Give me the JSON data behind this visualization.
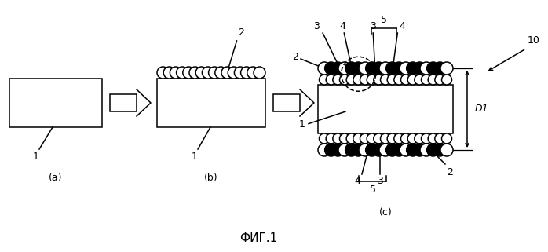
{
  "bg_color": "#ffffff",
  "lc": "#000000",
  "fig_label": "ФИГ.1",
  "panel_a_label": "(a)",
  "panel_b_label": "(b)",
  "panel_c_label": "(c)",
  "figw": 6.98,
  "figh": 3.21,
  "dpi": 100
}
